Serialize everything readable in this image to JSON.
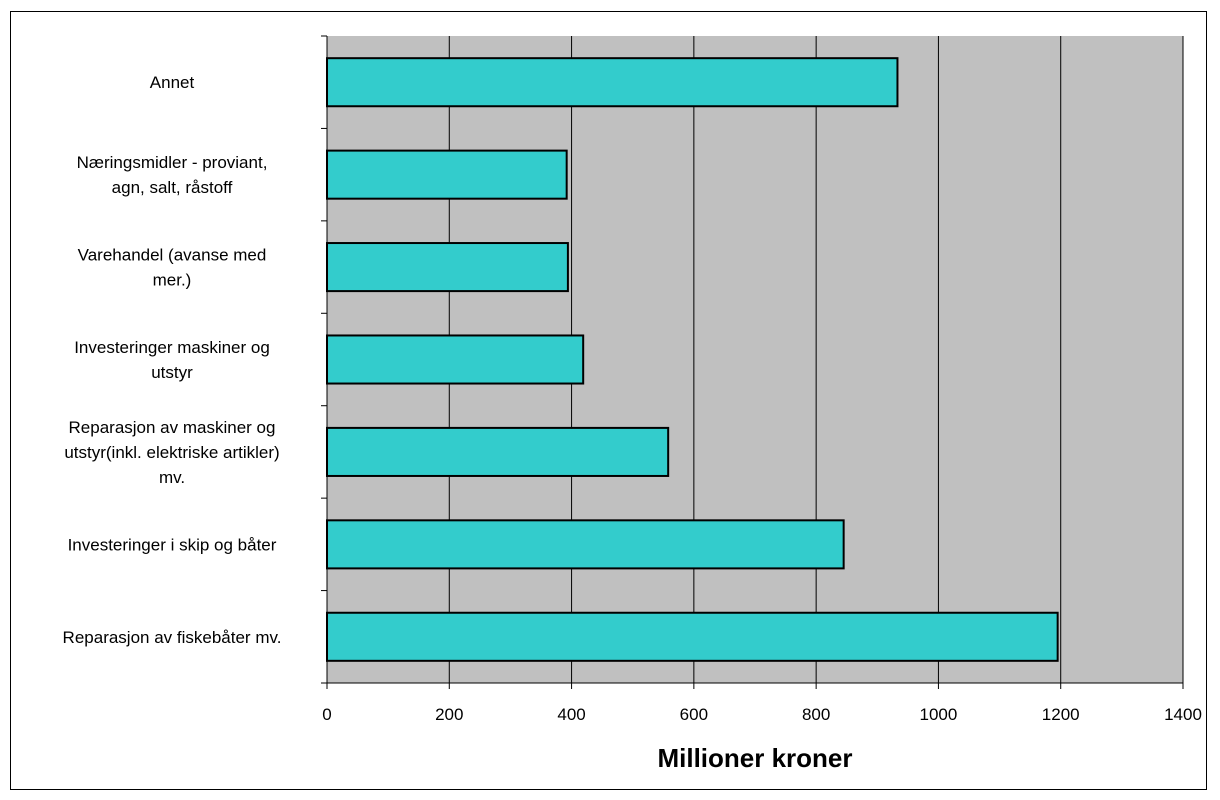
{
  "chart_data": {
    "type": "bar",
    "orientation": "horizontal",
    "categories": [
      "Annet",
      "Næringsmidler - proviant, agn, salt, råstoff",
      "Varehandel (avanse med mer.)",
      "Investeringer maskiner og utstyr",
      "Reparasjon av maskiner og utstyr(inkl. elektriske artikler) mv.",
      "Investeringer i skip og båter",
      "Reparasjon av fiskebåter mv."
    ],
    "category_lines": [
      [
        "Annet"
      ],
      [
        "Næringsmidler - proviant,",
        "agn, salt, råstoff"
      ],
      [
        "Varehandel (avanse med",
        "mer.)"
      ],
      [
        "Investeringer maskiner og",
        "utstyr"
      ],
      [
        "Reparasjon av maskiner og",
        "utstyr(inkl. elektriske artikler)",
        "mv."
      ],
      [
        "Investeringer i skip og båter"
      ],
      [
        "Reparasjon av fiskebåter mv."
      ]
    ],
    "values": [
      933,
      392,
      394,
      419,
      558,
      845,
      1195
    ],
    "xlabel": "Millioner kroner",
    "ylabel": "",
    "xlim": [
      0,
      1400
    ],
    "xticks": [
      "0",
      "200",
      "400",
      "600",
      "800",
      "1000",
      "1200",
      "1400"
    ],
    "grid": "vertical",
    "plot_background": "#C0C0C0",
    "bar_color": "#33CCCC",
    "bar_edge_color": "#000000"
  }
}
